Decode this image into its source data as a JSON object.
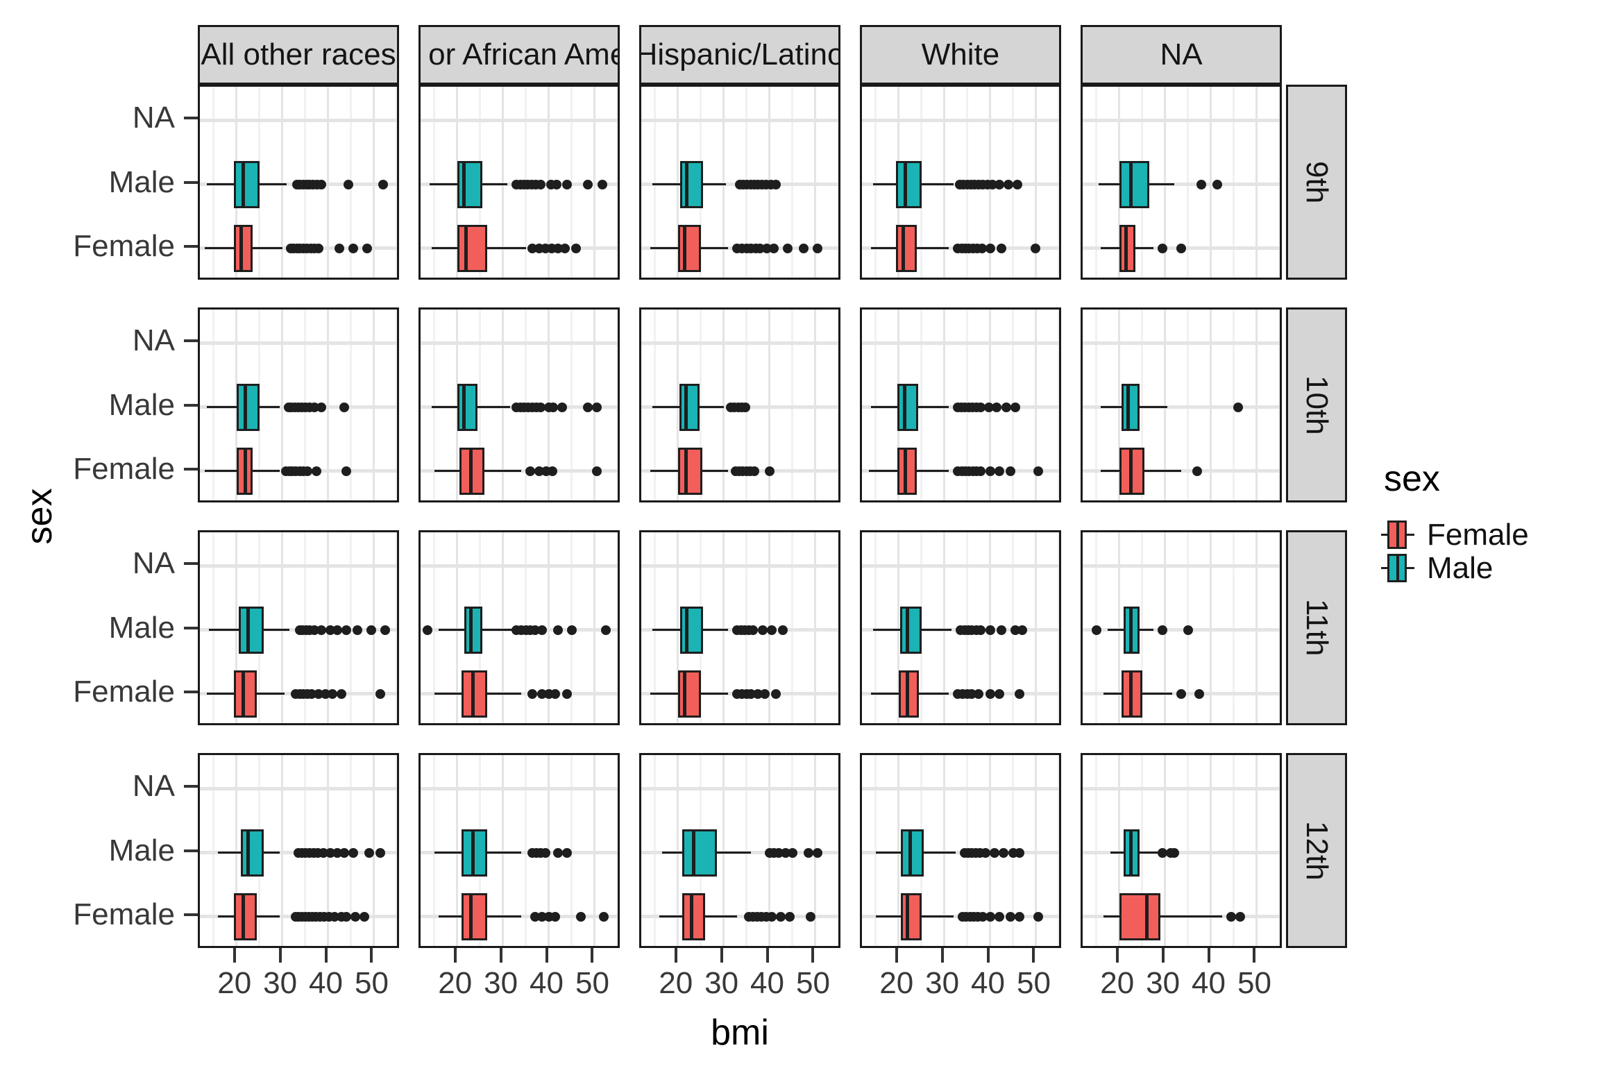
{
  "axes": {
    "y_title": "sex",
    "x_title": "bmi",
    "y_categories": [
      "NA",
      "Male",
      "Female"
    ],
    "x_tick_labels": [
      "20",
      "30",
      "40",
      "50"
    ]
  },
  "facets": {
    "cols": [
      "All other races",
      "Black or African American",
      "Hispanic/Latino",
      "White",
      "NA"
    ],
    "rows": [
      "9th",
      "10th",
      "11th",
      "12th"
    ]
  },
  "legend": {
    "title": "sex",
    "entries": [
      {
        "label": "Female",
        "color": "#F25F5A"
      },
      {
        "label": "Male",
        "color": "#1BB3B4"
      }
    ]
  },
  "colors": {
    "female": "#F25F5A",
    "male": "#1BB3B4",
    "stroke": "#1E1E1E",
    "panel_border": "#1A1A1A",
    "strip_fill": "#D5D5D5",
    "grid_major": "#E4E4E4",
    "grid_minor": "#F1F1F1",
    "tick_label": "#383838"
  },
  "chart_data": {
    "type": "boxplot",
    "orientation": "horizontal",
    "title": "",
    "xlabel": "bmi",
    "ylabel": "sex",
    "x_domain": [
      12,
      56
    ],
    "x_major_ticks": [
      20,
      30,
      40,
      50
    ],
    "x_minor_ticks": [
      15,
      25,
      35,
      45,
      55
    ],
    "col_facets": [
      "All other races",
      "Black or African American",
      "Hispanic/Latino",
      "White",
      "NA"
    ],
    "row_facets": [
      "9th",
      "10th",
      "11th",
      "12th"
    ],
    "y_categories_top_to_bottom": [
      "NA",
      "Male",
      "Female"
    ],
    "panels": [
      {
        "r": 0,
        "c": 0,
        "male": {
          "lo": 13.5,
          "q1": 19.5,
          "med": 21.5,
          "q3": 25,
          "hi": 31,
          "out": [
            33.2,
            33.9,
            34.6,
            35.3,
            36,
            36.8,
            37.6,
            38.5,
            44.5,
            52
          ]
        },
        "female": {
          "lo": 13,
          "q1": 19.5,
          "med": 21,
          "q3": 23.5,
          "hi": 30,
          "out": [
            31.8,
            32.5,
            33.2,
            33.9,
            34.6,
            35.4,
            36.2,
            37,
            38,
            42.5,
            45.5,
            48.5
          ]
        }
      },
      {
        "r": 0,
        "c": 1,
        "male": {
          "lo": 14,
          "q1": 20,
          "med": 21.5,
          "q3": 25.5,
          "hi": 31,
          "out": [
            33,
            33.8,
            34.6,
            35.4,
            36.3,
            37.2,
            38.2,
            40.5,
            41.8,
            44,
            48.5,
            51.8
          ]
        },
        "female": {
          "lo": 14.5,
          "q1": 20,
          "med": 22,
          "q3": 26.5,
          "hi": 35,
          "out": [
            36.5,
            38,
            39.3,
            40.6,
            42,
            43.5,
            46
          ]
        }
      },
      {
        "r": 0,
        "c": 2,
        "male": {
          "lo": 14.5,
          "q1": 20.5,
          "med": 22,
          "q3": 25.5,
          "hi": 30.5,
          "out": [
            33.5,
            34.3,
            35.1,
            35.9,
            36.7,
            37.5,
            38.4,
            39.3,
            40.3,
            41.5
          ]
        },
        "female": {
          "lo": 14,
          "q1": 20,
          "med": 21.5,
          "q3": 25,
          "hi": 31,
          "out": [
            33,
            34,
            35,
            36,
            37,
            38,
            39.5,
            41,
            44,
            47.5,
            50.5
          ]
        }
      },
      {
        "r": 0,
        "c": 3,
        "male": {
          "lo": 14.5,
          "q1": 19.5,
          "med": 21.5,
          "q3": 25,
          "hi": 32,
          "out": [
            33.4,
            34.2,
            35,
            35.8,
            36.6,
            37.5,
            38.4,
            39.4,
            40.5,
            42,
            44,
            46
          ]
        },
        "female": {
          "lo": 14,
          "q1": 19.5,
          "med": 21,
          "q3": 24,
          "hi": 31,
          "out": [
            33,
            33.8,
            34.6,
            35.4,
            36.3,
            37.2,
            38.2,
            40,
            42.5,
            50
          ]
        }
      },
      {
        "r": 0,
        "c": 4,
        "male": {
          "lo": 15.5,
          "q1": 20,
          "med": 22.5,
          "q3": 26.5,
          "hi": 32,
          "out": [
            38,
            41.5
          ]
        },
        "female": {
          "lo": 16,
          "q1": 20,
          "med": 21.5,
          "q3": 23.5,
          "hi": 27.5,
          "out": [
            29.5,
            33.5
          ]
        }
      },
      {
        "r": 1,
        "c": 0,
        "male": {
          "lo": 13.5,
          "q1": 20,
          "med": 22,
          "q3": 25,
          "hi": 29.5,
          "out": [
            31.4,
            32.1,
            32.8,
            33.5,
            34.3,
            35.1,
            36,
            37,
            38.5,
            43.5
          ]
        },
        "female": {
          "lo": 13,
          "q1": 20,
          "med": 22,
          "q3": 23.5,
          "hi": 29.5,
          "out": [
            30.8,
            31.5,
            32.2,
            33,
            33.8,
            34.6,
            35.5,
            37.5,
            44
          ]
        }
      },
      {
        "r": 1,
        "c": 1,
        "male": {
          "lo": 14.5,
          "q1": 20,
          "med": 21.5,
          "q3": 24.5,
          "hi": 31.5,
          "out": [
            33,
            33.8,
            34.6,
            35.5,
            36.4,
            37.3,
            38.3,
            40,
            41,
            43,
            48.5,
            50.5
          ]
        },
        "female": {
          "lo": 15,
          "q1": 20.5,
          "med": 23,
          "q3": 26,
          "hi": 34,
          "out": [
            36,
            38,
            39.5,
            40.8,
            50.5
          ]
        }
      },
      {
        "r": 1,
        "c": 2,
        "male": {
          "lo": 14.5,
          "q1": 20.3,
          "med": 21.8,
          "q3": 24.8,
          "hi": 30,
          "out": [
            31.6,
            32.4,
            33.2,
            34,
            34.8
          ]
        },
        "female": {
          "lo": 14,
          "q1": 20,
          "med": 21.8,
          "q3": 25.3,
          "hi": 31,
          "out": [
            32.6,
            33.4,
            34.2,
            35,
            35.8,
            36.7,
            40
          ]
        }
      },
      {
        "r": 1,
        "c": 3,
        "male": {
          "lo": 14,
          "q1": 19.8,
          "med": 21.3,
          "q3": 24.3,
          "hi": 31,
          "out": [
            32.9,
            33.7,
            34.5,
            35.3,
            36.1,
            37,
            38,
            39.8,
            41.5,
            43.5,
            45.5
          ]
        },
        "female": {
          "lo": 13.5,
          "q1": 19.8,
          "med": 21.5,
          "q3": 24,
          "hi": 31,
          "out": [
            33,
            33.8,
            34.6,
            35.4,
            36.2,
            37.1,
            38,
            40,
            42,
            44.5,
            50.5
          ]
        }
      },
      {
        "r": 1,
        "c": 4,
        "male": {
          "lo": 16,
          "q1": 20.5,
          "med": 22,
          "q3": 24.5,
          "hi": 30.5,
          "out": [
            46
          ]
        },
        "female": {
          "lo": 16,
          "q1": 20,
          "med": 22.5,
          "q3": 25.5,
          "hi": 33.5,
          "out": [
            37
          ]
        }
      },
      {
        "r": 2,
        "c": 0,
        "male": {
          "lo": 14,
          "q1": 20.5,
          "med": 22.5,
          "q3": 26,
          "hi": 31.5,
          "out": [
            33.8,
            34.5,
            35.2,
            36,
            37,
            38.5,
            40.5,
            42,
            44,
            46.5,
            49.5,
            52.5
          ]
        },
        "female": {
          "lo": 13.5,
          "q1": 19.5,
          "med": 21.5,
          "q3": 24.5,
          "hi": 30.5,
          "out": [
            33,
            33.8,
            34.6,
            35.5,
            36.5,
            38,
            39.5,
            41,
            43,
            51.5
          ]
        }
      },
      {
        "r": 2,
        "c": 1,
        "male": {
          "lo": 16,
          "q1": 21.5,
          "med": 23,
          "q3": 25.5,
          "hi": 32,
          "out": [
            33,
            34,
            35,
            36,
            37,
            38.5,
            42,
            45,
            52.5
          ],
          "out_low": [
            13.5
          ]
        },
        "female": {
          "lo": 15,
          "q1": 21,
          "med": 23.5,
          "q3": 26.5,
          "hi": 34,
          "out": [
            36.5,
            38.5,
            40,
            41.5,
            44
          ]
        }
      },
      {
        "r": 2,
        "c": 2,
        "male": {
          "lo": 14.5,
          "q1": 20.5,
          "med": 22,
          "q3": 25.5,
          "hi": 31,
          "out": [
            33,
            33.8,
            34.6,
            35.5,
            36.4,
            38.5,
            40.5,
            43
          ]
        },
        "female": {
          "lo": 14,
          "q1": 20,
          "med": 21.5,
          "q3": 25,
          "hi": 31,
          "out": [
            33,
            34,
            35,
            36,
            37.5,
            39,
            41.5
          ]
        }
      },
      {
        "r": 2,
        "c": 3,
        "male": {
          "lo": 14.5,
          "q1": 20.3,
          "med": 22,
          "q3": 25,
          "hi": 31.5,
          "out": [
            33.6,
            34.4,
            35.2,
            36,
            37,
            38,
            40,
            42.5,
            45.5,
            47
          ]
        },
        "female": {
          "lo": 14,
          "q1": 20,
          "med": 22,
          "q3": 24.5,
          "hi": 31,
          "out": [
            33,
            34,
            35,
            36,
            37.5,
            40,
            42,
            46.5
          ]
        }
      },
      {
        "r": 2,
        "c": 4,
        "male": {
          "lo": 17.5,
          "q1": 21,
          "med": 22.5,
          "q3": 24.5,
          "hi": 27.5,
          "out": [
            29.5,
            35
          ],
          "out_low": [
            15
          ]
        },
        "female": {
          "lo": 16.5,
          "q1": 20.5,
          "med": 22.5,
          "q3": 25,
          "hi": 31.5,
          "out": [
            33.5,
            37.5
          ]
        }
      },
      {
        "r": 3,
        "c": 0,
        "male": {
          "lo": 16,
          "q1": 21,
          "med": 22.5,
          "q3": 26,
          "hi": 29.5,
          "out": [
            33.5,
            34.3,
            35.1,
            36,
            36.9,
            37.8,
            39,
            40.5,
            42,
            43.5,
            45.5,
            49,
            51.5
          ]
        },
        "female": {
          "lo": 16,
          "q1": 19.5,
          "med": 21.5,
          "q3": 24.5,
          "hi": 29.5,
          "out": [
            32.9,
            33.6,
            34.3,
            35,
            35.8,
            36.6,
            37.4,
            38.3,
            39.2,
            40.2,
            41.5,
            43,
            44,
            46,
            48
          ]
        }
      },
      {
        "r": 3,
        "c": 1,
        "male": {
          "lo": 15,
          "q1": 21,
          "med": 23.5,
          "q3": 26.5,
          "hi": 34,
          "out": [
            36.5,
            37.4,
            38.3,
            39.3,
            42,
            44
          ]
        },
        "female": {
          "lo": 16,
          "q1": 21,
          "med": 23,
          "q3": 26.5,
          "hi": 34,
          "out": [
            37,
            38.5,
            40,
            41.5,
            47,
            52
          ]
        }
      },
      {
        "r": 3,
        "c": 2,
        "male": {
          "lo": 16.5,
          "q1": 21,
          "med": 23.5,
          "q3": 28.5,
          "hi": 36,
          "out": [
            40,
            41,
            42,
            43.5,
            45,
            48.5,
            50.5
          ]
        },
        "female": {
          "lo": 16,
          "q1": 21,
          "med": 23,
          "q3": 26,
          "hi": 33,
          "out": [
            35.5,
            36.4,
            37.3,
            38.3,
            39.3,
            40.5,
            42.5,
            44.5,
            49
          ]
        }
      },
      {
        "r": 3,
        "c": 3,
        "male": {
          "lo": 15,
          "q1": 20.5,
          "med": 22.5,
          "q3": 25.5,
          "hi": 32.5,
          "out": [
            34.4,
            35.2,
            36,
            36.9,
            37.8,
            39,
            41,
            43,
            45,
            46.5
          ]
        },
        "female": {
          "lo": 15,
          "q1": 20.5,
          "med": 22,
          "q3": 25,
          "hi": 32,
          "out": [
            34,
            34.8,
            35.6,
            36.5,
            37.4,
            38.4,
            40,
            42,
            44.5,
            46.5,
            50.5
          ]
        }
      },
      {
        "r": 3,
        "c": 4,
        "male": {
          "lo": 18,
          "q1": 21,
          "med": 22.5,
          "q3": 24.5,
          "hi": 28.5,
          "out": [
            29.5,
            31.3,
            32
          ]
        },
        "female": {
          "lo": 16.5,
          "q1": 20,
          "med": 26,
          "q3": 29,
          "hi": 42.5,
          "out": [
            44.5,
            46.5
          ]
        }
      }
    ]
  }
}
